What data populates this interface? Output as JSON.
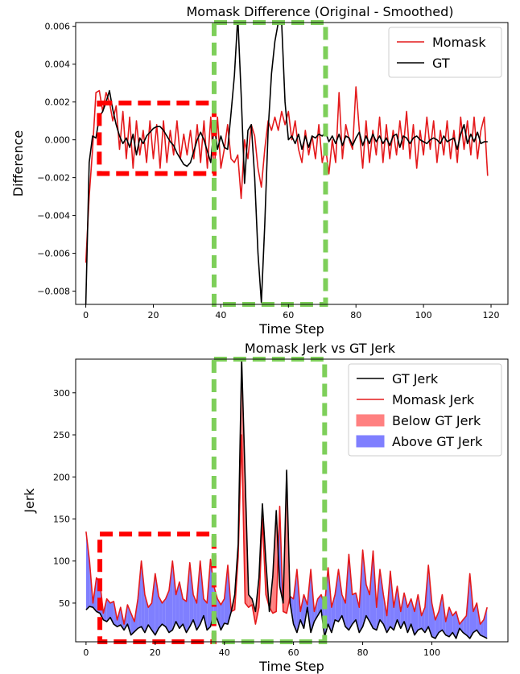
{
  "chart_data": [
    {
      "type": "line",
      "title": "Momask Difference (Original - Smoothed)",
      "xlabel": "Time Step",
      "ylabel": "Difference",
      "xlim": [
        -3,
        125
      ],
      "ylim": [
        -0.0087,
        0.0062
      ],
      "xticks": [
        0,
        20,
        40,
        60,
        80,
        100,
        120
      ],
      "yticks": [
        -0.008,
        -0.006,
        -0.004,
        -0.002,
        0.0,
        0.002,
        0.004,
        0.006
      ],
      "ytick_labels": [
        "−0.008",
        "−0.006",
        "−0.004",
        "−0.002",
        "0.000",
        "0.002",
        "0.004",
        "0.006"
      ],
      "legend_position": "top-right",
      "series": [
        {
          "name": "Momask",
          "color": "#e41a1c",
          "x": [
            0,
            1,
            2,
            3,
            4,
            5,
            6,
            7,
            8,
            9,
            10,
            11,
            12,
            13,
            14,
            15,
            16,
            17,
            18,
            19,
            20,
            21,
            22,
            23,
            24,
            25,
            26,
            27,
            28,
            29,
            30,
            31,
            32,
            33,
            34,
            35,
            36,
            37,
            38,
            39,
            40,
            41,
            42,
            43,
            44,
            45,
            46,
            47,
            48,
            49,
            50,
            51,
            52,
            53,
            54,
            55,
            56,
            57,
            58,
            59,
            60,
            61,
            62,
            63,
            64,
            65,
            66,
            67,
            68,
            69,
            70,
            71,
            72,
            73,
            74,
            75,
            76,
            77,
            78,
            79,
            80,
            81,
            82,
            83,
            84,
            85,
            86,
            87,
            88,
            89,
            90,
            91,
            92,
            93,
            94,
            95,
            96,
            97,
            98,
            99,
            100,
            101,
            102,
            103,
            104,
            105,
            106,
            107,
            108,
            109,
            110,
            111,
            112,
            113,
            114,
            115,
            116,
            117,
            118,
            119
          ],
          "values": [
            -0.0065,
            -0.003,
            -0.0005,
            0.0025,
            0.0026,
            0.0015,
            0.0025,
            0.002,
            0.001,
            0.0018,
            -0.0005,
            0.0015,
            -0.001,
            0.0012,
            -0.0015,
            0.001,
            -0.0008,
            0.0005,
            -0.0012,
            0.001,
            -0.001,
            0.0008,
            -0.0015,
            0.001,
            -0.0012,
            0.0005,
            -0.0008,
            0.001,
            -0.001,
            0.0003,
            -0.0008,
            0.0005,
            -0.001,
            0.0008,
            -0.0012,
            0.001,
            -0.0015,
            0.0012,
            -0.0018,
            0.0012,
            -0.0015,
            -0.0005,
            0.0008,
            -0.001,
            -0.0012,
            -0.0008,
            -0.0031,
            0.0,
            -0.001,
            0.0008,
            0.0002,
            -0.0015,
            -0.0025,
            -0.0005,
            0.001,
            0.0005,
            0.0012,
            0.0005,
            0.0015,
            0.0008,
            0.0015,
            0.0,
            0.001,
            -0.0005,
            -0.0012,
            0.0005,
            -0.0008,
            0.0002,
            -0.001,
            0.0008,
            -0.0012,
            -0.0004,
            -0.0018,
            0.0,
            -0.0012,
            0.0025,
            -0.001,
            0.0008,
            0.0,
            -0.0005,
            0.0028,
            0.0005,
            -0.0015,
            0.001,
            -0.0012,
            0.0005,
            -0.0008,
            0.0012,
            -0.0012,
            0.0008,
            -0.001,
            0.0005,
            -0.0008,
            0.001,
            -0.0005,
            0.0015,
            -0.001,
            0.0008,
            -0.0015,
            0.0005,
            -0.0008,
            0.0012,
            -0.0005,
            0.001,
            -0.0012,
            0.0005,
            -0.0008,
            0.001,
            -0.001,
            0.0005,
            -0.0012,
            0.0012,
            -0.0005,
            0.001,
            -0.0008,
            0.0012,
            -0.001,
            0.0005,
            0.0012,
            -0.0019
          ]
        },
        {
          "name": "GT",
          "color": "#000000",
          "x": [
            0,
            1,
            2,
            3,
            4,
            5,
            6,
            7,
            8,
            9,
            10,
            11,
            12,
            13,
            14,
            15,
            16,
            17,
            18,
            19,
            20,
            21,
            22,
            23,
            24,
            25,
            26,
            27,
            28,
            29,
            30,
            31,
            32,
            33,
            34,
            35,
            36,
            37,
            38,
            39,
            40,
            41,
            42,
            43,
            44,
            45,
            46,
            47,
            48,
            49,
            50,
            51,
            52,
            53,
            54,
            55,
            56,
            57,
            58,
            59,
            60,
            61,
            62,
            63,
            64,
            65,
            66,
            67,
            68,
            69,
            70,
            71,
            72,
            73,
            74,
            75,
            76,
            77,
            78,
            79,
            80,
            81,
            82,
            83,
            84,
            85,
            86,
            87,
            88,
            89,
            90,
            91,
            92,
            93,
            94,
            95,
            96,
            97,
            98,
            99,
            100,
            101,
            102,
            103,
            104,
            105,
            106,
            107,
            108,
            109,
            110,
            111,
            112,
            113,
            114,
            115,
            116,
            117,
            118,
            119
          ],
          "values": [
            -0.0087,
            -0.0012,
            0.0002,
            0.0001,
            0.0012,
            0.0015,
            0.002,
            0.0026,
            0.0016,
            0.0008,
            0.0002,
            -0.0002,
            0.0001,
            -0.0004,
            0.0003,
            -0.0008,
            0.0001,
            -0.0002,
            0.0002,
            0.0004,
            0.0006,
            0.0007,
            0.0007,
            0.0005,
            0.0002,
            -0.0001,
            -0.0003,
            -0.0007,
            -0.001,
            -0.0013,
            -0.0014,
            -0.0012,
            -0.0006,
            0.0,
            0.0004,
            0.0,
            -0.0006,
            -0.0012,
            0.0008,
            -0.0005,
            0.0002,
            -0.0004,
            -0.0005,
            0.0014,
            0.0034,
            0.0065,
            0.0024,
            -0.0023,
            0.0005,
            0.0008,
            -0.002,
            -0.006,
            -0.0086,
            -0.0045,
            0.0005,
            0.0035,
            0.0052,
            0.0062,
            0.0062,
            0.002,
            0.0,
            0.0002,
            -0.0002,
            0.0003,
            -0.0005,
            0.0002,
            -0.0004,
            0.0002,
            0.0001,
            0.0003,
            0.0002,
            0.0004,
            -0.0001,
            0.0002,
            -0.0002,
            0.0003,
            -0.0003,
            0.0002,
            0.0001,
            -0.0003,
            0.0001,
            0.0004,
            -0.0003,
            0.0002,
            -0.0002,
            0.0003,
            -0.0001,
            0.0002,
            -0.0002,
            0.0001,
            -0.0003,
            0.0002,
            0.0003,
            -0.0004,
            0.0002,
            0.0001,
            -0.0002,
            0.0001,
            0.0002,
            0.0,
            -0.0001,
            -0.0002,
            0.0,
            0.0001,
            0.0,
            -0.0002,
            0.0002,
            -0.0001,
            0.0,
            0.0001,
            -0.0005,
            0.0003,
            0.0008,
            -0.0002,
            0.0003,
            -0.0001,
            0.0004,
            -0.0002,
            -0.0001,
            -0.0001
          ]
        }
      ],
      "highlight_boxes": [
        {
          "color": "#ff0000",
          "x0": 4,
          "x1": 38,
          "y0": -0.00178,
          "y1": 0.00195
        },
        {
          "color": "#7ecf5a",
          "x0": 38,
          "x1": 71,
          "y0": -0.0087,
          "y1": 0.0062
        }
      ]
    },
    {
      "type": "area",
      "title": "Momask Jerk vs GT Jerk",
      "xlabel": "Time Step",
      "ylabel": "Jerk",
      "xlim": [
        -3,
        122
      ],
      "ylim": [
        4,
        340
      ],
      "xticks": [
        0,
        20,
        40,
        60,
        80,
        100
      ],
      "yticks": [
        50,
        100,
        150,
        200,
        250,
        300
      ],
      "legend_position": "top-right",
      "series": [
        {
          "name": "GT Jerk",
          "color": "#000000",
          "x": [
            0,
            1,
            2,
            3,
            4,
            5,
            6,
            7,
            8,
            9,
            10,
            11,
            12,
            13,
            14,
            15,
            16,
            17,
            18,
            19,
            20,
            21,
            22,
            23,
            24,
            25,
            26,
            27,
            28,
            29,
            30,
            31,
            32,
            33,
            34,
            35,
            36,
            37,
            38,
            39,
            40,
            41,
            42,
            43,
            44,
            45,
            46,
            47,
            48,
            49,
            50,
            51,
            52,
            53,
            54,
            55,
            56,
            57,
            58,
            59,
            60,
            61,
            62,
            63,
            64,
            65,
            66,
            67,
            68,
            69,
            70,
            71,
            72,
            73,
            74,
            75,
            76,
            77,
            78,
            79,
            80,
            81,
            82,
            83,
            84,
            85,
            86,
            87,
            88,
            89,
            90,
            91,
            92,
            93,
            94,
            95,
            96,
            97,
            98,
            99,
            100,
            101,
            102,
            103,
            104,
            105,
            106,
            107,
            108,
            109,
            110,
            111,
            112,
            113,
            114,
            115,
            116
          ],
          "values": [
            42,
            46,
            45,
            40,
            38,
            30,
            28,
            33,
            25,
            22,
            24,
            18,
            25,
            12,
            16,
            20,
            22,
            15,
            24,
            18,
            12,
            20,
            25,
            22,
            15,
            18,
            28,
            20,
            25,
            15,
            22,
            30,
            18,
            25,
            35,
            18,
            22,
            38,
            30,
            18,
            26,
            25,
            40,
            60,
            120,
            340,
            200,
            60,
            55,
            40,
            80,
            168,
            100,
            40,
            82,
            160,
            70,
            50,
            208,
            50,
            25,
            15,
            30,
            20,
            45,
            15,
            28,
            35,
            42,
            10,
            25,
            15,
            30,
            28,
            35,
            22,
            18,
            25,
            30,
            15,
            22,
            35,
            28,
            20,
            18,
            30,
            25,
            15,
            22,
            18,
            30,
            20,
            28,
            15,
            25,
            12,
            18,
            20,
            15,
            22,
            10,
            8,
            15,
            18,
            12,
            10,
            15,
            8,
            20,
            15,
            12,
            8,
            15,
            18,
            12,
            10,
            8
          ]
        },
        {
          "name": "Momask Jerk",
          "color": "#e41a1c",
          "x": [
            0,
            1,
            2,
            3,
            4,
            5,
            6,
            7,
            8,
            9,
            10,
            11,
            12,
            13,
            14,
            15,
            16,
            17,
            18,
            19,
            20,
            21,
            22,
            23,
            24,
            25,
            26,
            27,
            28,
            29,
            30,
            31,
            32,
            33,
            34,
            35,
            36,
            37,
            38,
            39,
            40,
            41,
            42,
            43,
            44,
            45,
            46,
            47,
            48,
            49,
            50,
            51,
            52,
            53,
            54,
            55,
            56,
            57,
            58,
            59,
            60,
            61,
            62,
            63,
            64,
            65,
            66,
            67,
            68,
            69,
            70,
            71,
            72,
            73,
            74,
            75,
            76,
            77,
            78,
            79,
            80,
            81,
            82,
            83,
            84,
            85,
            86,
            87,
            88,
            89,
            90,
            91,
            92,
            93,
            94,
            95,
            96,
            97,
            98,
            99,
            100,
            101,
            102,
            103,
            104,
            105,
            106,
            107,
            108,
            109,
            110,
            111,
            112,
            113,
            114,
            115,
            116
          ],
          "values": [
            135,
            100,
            50,
            80,
            75,
            38,
            55,
            50,
            52,
            30,
            45,
            25,
            48,
            38,
            28,
            55,
            100,
            60,
            45,
            50,
            85,
            58,
            50,
            55,
            65,
            100,
            60,
            75,
            55,
            52,
            98,
            60,
            50,
            100,
            55,
            50,
            102,
            70,
            55,
            48,
            55,
            95,
            40,
            42,
            105,
            250,
            50,
            45,
            48,
            25,
            45,
            150,
            60,
            45,
            38,
            40,
            165,
            40,
            38,
            58,
            55,
            90,
            40,
            60,
            48,
            90,
            40,
            55,
            60,
            48,
            92,
            45,
            60,
            90,
            60,
            50,
            108,
            60,
            62,
            45,
            113,
            72,
            60,
            112,
            45,
            90,
            60,
            35,
            88,
            45,
            70,
            40,
            62,
            45,
            55,
            40,
            60,
            35,
            45,
            95,
            50,
            30,
            40,
            60,
            28,
            45,
            35,
            40,
            25,
            30,
            35,
            85,
            40,
            50,
            25,
            30,
            45
          ]
        }
      ],
      "fill_legend": [
        {
          "name": "Below GT Jerk",
          "color": "#ff8080"
        },
        {
          "name": "Above GT Jerk",
          "color": "#7f7fff"
        }
      ],
      "highlight_boxes": [
        {
          "color": "#ff0000",
          "x0": 4,
          "x1": 37,
          "y0": 4,
          "y1": 132
        },
        {
          "color": "#7ecf5a",
          "x0": 37,
          "x1": 69,
          "y0": 4,
          "y1": 340
        }
      ]
    }
  ]
}
